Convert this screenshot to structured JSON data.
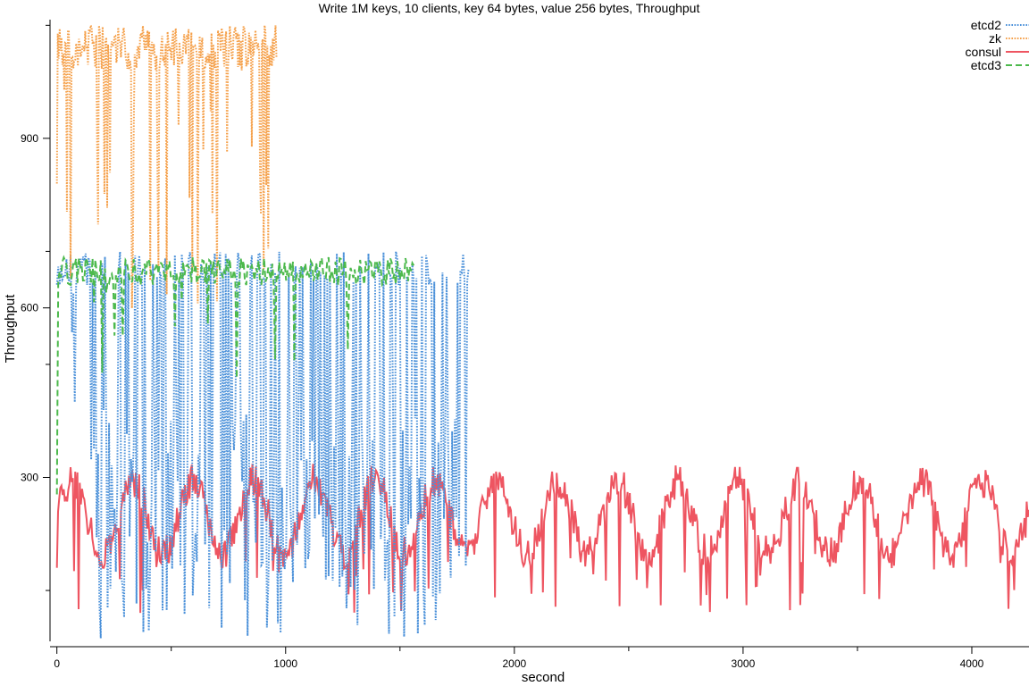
{
  "chart_data": {
    "type": "line",
    "title": "Write 1M keys, 10 clients, key 64 bytes, value 256 bytes, Throughput",
    "xlabel": "second",
    "ylabel": "Throughput",
    "xlim": [
      -30,
      4250
    ],
    "ylim": [
      10,
      1110
    ],
    "x_ticks": [
      {
        "value": 0,
        "label": "0"
      },
      {
        "value": 1000,
        "label": "1000"
      },
      {
        "value": 2000,
        "label": "2000"
      },
      {
        "value": 3000,
        "label": "3000"
      },
      {
        "value": 4000,
        "label": "4000"
      }
    ],
    "x_minor_ticks": [
      500,
      1500,
      2500,
      3500
    ],
    "y_ticks": [
      {
        "value": 300,
        "label": "300"
      },
      {
        "value": 600,
        "label": "600"
      },
      {
        "value": 900,
        "label": "900"
      }
    ],
    "y_minor_ticks": [
      100,
      500,
      700,
      1100
    ],
    "legend_position": "top-right",
    "series": [
      {
        "name": "etcd2",
        "color": "#4a90d9",
        "style": "dotted",
        "x_start": 0,
        "x_end": 1800,
        "step": 6,
        "high_min": 640,
        "high_max": 700,
        "drop_prob": 0.62,
        "drop_min": 10,
        "drop_max": 420,
        "early_until": 150,
        "early_drop_min": 430,
        "early_drop_max": 640
      },
      {
        "name": "zk",
        "color": "#f5a04a",
        "style": "dotted",
        "x_start": 0,
        "x_end": 960,
        "step": 4,
        "high_min": 1020,
        "high_max": 1100,
        "start_value": 820,
        "drop_prob": 0.12,
        "drop_min": 590,
        "drop_max": 1000
      },
      {
        "name": "consul",
        "color": "#ee5561",
        "style": "solid",
        "x_start": 0,
        "x_end": 4250,
        "step": 5,
        "start_value": 140,
        "base": 230,
        "wave_amp": 65,
        "wave_period": 265,
        "noise": 30,
        "drop_prob": 0.06,
        "drop_min": 60,
        "drop_max": 170
      },
      {
        "name": "etcd3",
        "color": "#4cb94c",
        "style": "dashed",
        "x_start": 0,
        "x_end": 1560,
        "step": 6,
        "start_value": 270,
        "high_min": 640,
        "high_max": 690,
        "drop_prob": 0.05,
        "drop_min": 460,
        "drop_max": 630
      }
    ]
  }
}
